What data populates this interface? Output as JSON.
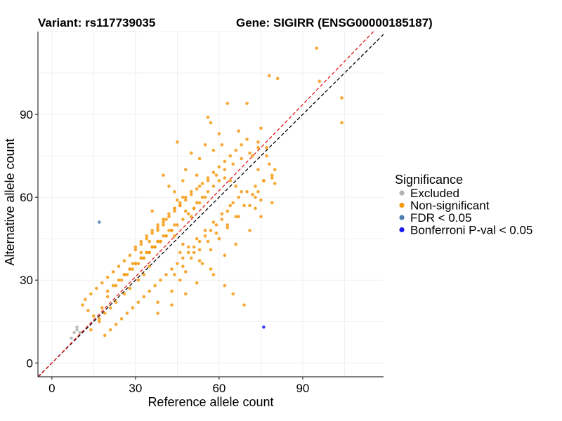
{
  "chart_data": {
    "type": "scatter",
    "title_left": "Variant: rs117739035",
    "title_right": "Gene: SIGIRR (ENSG00000185187)",
    "xlabel": "Reference allele count",
    "ylabel": "Alternative allele count",
    "xlim": [
      -5,
      119
    ],
    "ylim": [
      -5,
      120
    ],
    "xticks": [
      0,
      30,
      60,
      90
    ],
    "yticks": [
      0,
      30,
      60,
      90
    ],
    "grid": true,
    "legend": {
      "title": "Significance",
      "position": "right",
      "entries": [
        {
          "label": "Excluded",
          "color": "#b3b3b3"
        },
        {
          "label": "Non-significant",
          "color": "#f59a10"
        },
        {
          "label": "FDR < 0.05",
          "color": "#4a7fb0"
        },
        {
          "label": "Bonferroni P-val < 0.05",
          "color": "#1a1af0"
        }
      ]
    },
    "reference_lines": [
      {
        "kind": "identity",
        "slope": 1,
        "intercept": 0,
        "color": "#000000",
        "dash": "dashed"
      },
      {
        "kind": "fit",
        "slope": 1.04,
        "intercept": 0,
        "color": "#e41a1c",
        "dash": "dashed"
      }
    ],
    "series": [
      {
        "name": "Excluded",
        "color": "#b3b3b3",
        "x": [
          7,
          8,
          9,
          9,
          10
        ],
        "y": [
          9,
          11,
          13,
          12,
          11
        ]
      },
      {
        "name": "FDR < 0.05",
        "color": "#4a7fb0",
        "x": [
          17
        ],
        "y": [
          51
        ]
      },
      {
        "name": "Bonferroni P-val < 0.05",
        "color": "#1a1af0",
        "x": [
          76
        ],
        "y": [
          13
        ]
      },
      {
        "name": "Non-significant",
        "color": "#f59a10",
        "x": [
          95,
          96,
          78,
          81,
          104,
          104,
          63,
          70,
          56,
          57,
          67,
          60,
          45,
          50,
          61,
          75,
          74,
          77,
          77,
          78,
          80,
          79,
          80,
          74,
          73,
          71,
          55,
          58,
          53,
          48,
          47,
          52,
          40,
          42,
          44,
          45,
          46,
          48,
          50,
          51,
          52,
          54,
          56,
          58,
          60,
          62,
          64,
          66,
          68,
          65,
          63,
          61,
          59,
          57,
          55,
          53,
          51,
          49,
          47,
          45,
          43,
          41,
          39,
          37,
          35,
          33,
          31,
          29,
          27,
          25,
          23,
          21,
          19,
          17,
          15,
          13,
          11,
          12,
          14,
          16,
          18,
          20,
          22,
          24,
          26,
          28,
          30,
          32,
          34,
          36,
          38,
          40,
          42,
          44,
          46,
          48,
          50,
          52,
          54,
          56,
          58,
          60,
          62,
          64,
          66,
          68,
          70,
          72,
          74,
          76,
          30,
          32,
          34,
          36,
          38,
          40,
          42,
          44,
          46,
          48,
          33,
          35,
          37,
          39,
          41,
          43,
          45,
          47,
          49,
          51,
          53,
          55,
          28,
          30,
          32,
          34,
          36,
          38,
          40,
          42,
          44,
          25,
          27,
          29,
          31,
          33,
          35,
          37,
          39,
          41,
          43,
          20,
          22,
          24,
          26,
          28,
          30,
          32,
          34,
          36,
          38,
          18,
          20,
          23,
          26,
          29,
          32,
          35,
          38,
          41,
          44,
          47,
          50,
          53,
          56,
          59,
          62,
          65,
          68,
          71,
          74,
          46,
          49,
          52,
          55,
          58,
          61,
          64,
          67,
          70,
          73,
          76,
          79,
          38,
          43,
          46,
          48,
          53,
          57,
          60,
          63,
          66,
          69,
          72,
          36,
          40,
          44,
          47,
          51,
          54,
          58,
          62,
          65,
          69,
          38,
          43,
          48,
          52,
          57,
          62,
          66,
          71,
          75,
          79,
          44,
          47,
          50,
          53,
          56,
          59,
          63,
          67,
          73,
          75,
          14,
          17,
          19,
          21,
          23,
          26,
          28,
          31,
          33,
          35
        ],
        "y": [
          114,
          102,
          104,
          103,
          96,
          87,
          94,
          94,
          89,
          87,
          84,
          83,
          80,
          76,
          79,
          85,
          80,
          78,
          75,
          72,
          70,
          68,
          65,
          62,
          60,
          57,
          79,
          77,
          74,
          70,
          66,
          68,
          68,
          64,
          62,
          59,
          57,
          55,
          53,
          56,
          58,
          60,
          62,
          64,
          66,
          67,
          66,
          64,
          62,
          58,
          55,
          52,
          50,
          48,
          46,
          44,
          42,
          40,
          38,
          36,
          34,
          32,
          30,
          28,
          26,
          24,
          22,
          20,
          18,
          16,
          14,
          12,
          10,
          15,
          17,
          19,
          21,
          23,
          25,
          27,
          29,
          31,
          33,
          35,
          37,
          39,
          41,
          43,
          45,
          47,
          49,
          51,
          53,
          55,
          57,
          59,
          61,
          63,
          65,
          67,
          69,
          71,
          73,
          75,
          77,
          79,
          81,
          75,
          70,
          66,
          42,
          44,
          46,
          48,
          50,
          52,
          54,
          56,
          58,
          60,
          38,
          40,
          42,
          44,
          46,
          48,
          50,
          52,
          54,
          56,
          58,
          60,
          34,
          36,
          38,
          40,
          42,
          44,
          46,
          48,
          50,
          30,
          32,
          34,
          36,
          38,
          40,
          42,
          44,
          46,
          48,
          26,
          28,
          30,
          32,
          34,
          36,
          38,
          40,
          42,
          44,
          20,
          24,
          28,
          32,
          36,
          40,
          44,
          48,
          52,
          56,
          60,
          62,
          64,
          66,
          68,
          70,
          72,
          74,
          76,
          78,
          40,
          42,
          45,
          48,
          51,
          54,
          57,
          60,
          62,
          64,
          66,
          67,
          22,
          26,
          30,
          33,
          37,
          41,
          45,
          49,
          53,
          57,
          61,
          55,
          50,
          46,
          43,
          40,
          36,
          32,
          28,
          25,
          21,
          18,
          21,
          25,
          29,
          34,
          39,
          43,
          48,
          53,
          58,
          32,
          35,
          38,
          41,
          44,
          47,
          50,
          53,
          56,
          59,
          12,
          16,
          18,
          20,
          22,
          25,
          27,
          30,
          32,
          35
        ]
      }
    ]
  }
}
